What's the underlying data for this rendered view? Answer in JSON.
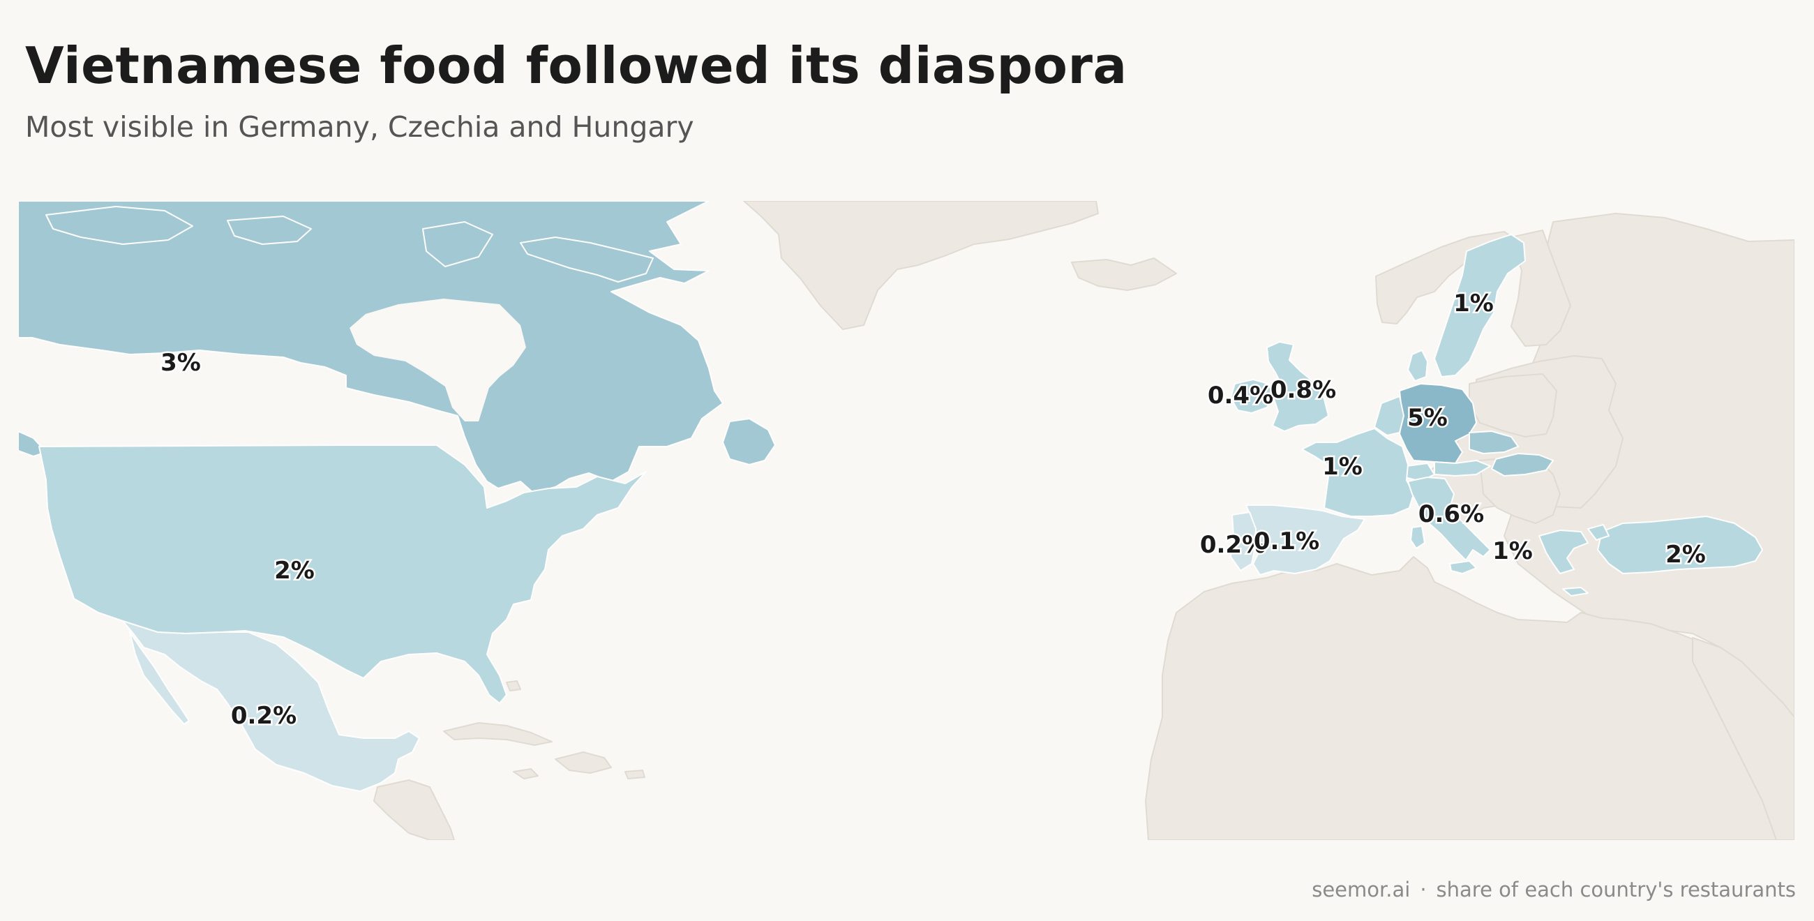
{
  "title": "Vietnamese food followed its diaspora",
  "subtitle": "Most visible in Germany, Czechia and Hungary",
  "footer": {
    "source": "seemor.ai",
    "separator": "·",
    "note": "share of each country's restaurants"
  },
  "colors": {
    "background": "#faf8f4",
    "no_data_land": "#ede9e2",
    "scale_low": "#cfe3e8",
    "scale_mid": "#b8d8df",
    "scale_high": "#a2c8d4",
    "scale_top": "#8bb8c8"
  },
  "regions": [
    {
      "name": "Canada",
      "label": "3%",
      "level": "high"
    },
    {
      "name": "United States",
      "label": "2%",
      "level": "mid"
    },
    {
      "name": "Mexico",
      "label": "0.2%",
      "level": "low"
    },
    {
      "name": "Ireland",
      "label": "0.4%",
      "level": "mid"
    },
    {
      "name": "United Kingdom",
      "label": "0.8%",
      "level": "mid"
    },
    {
      "name": "Sweden",
      "label": "1%",
      "level": "mid"
    },
    {
      "name": "Germany",
      "label": "5%",
      "level": "top"
    },
    {
      "name": "France",
      "label": "1%",
      "level": "mid"
    },
    {
      "name": "Italy",
      "label": "0.6%",
      "level": "mid"
    },
    {
      "name": "Portugal",
      "label": "0.2%",
      "level": "low"
    },
    {
      "name": "Spain",
      "label": "0.1%",
      "level": "low"
    },
    {
      "name": "Greece",
      "label": "1%",
      "level": "mid"
    },
    {
      "name": "Turkey",
      "label": "2%",
      "level": "mid"
    }
  ]
}
